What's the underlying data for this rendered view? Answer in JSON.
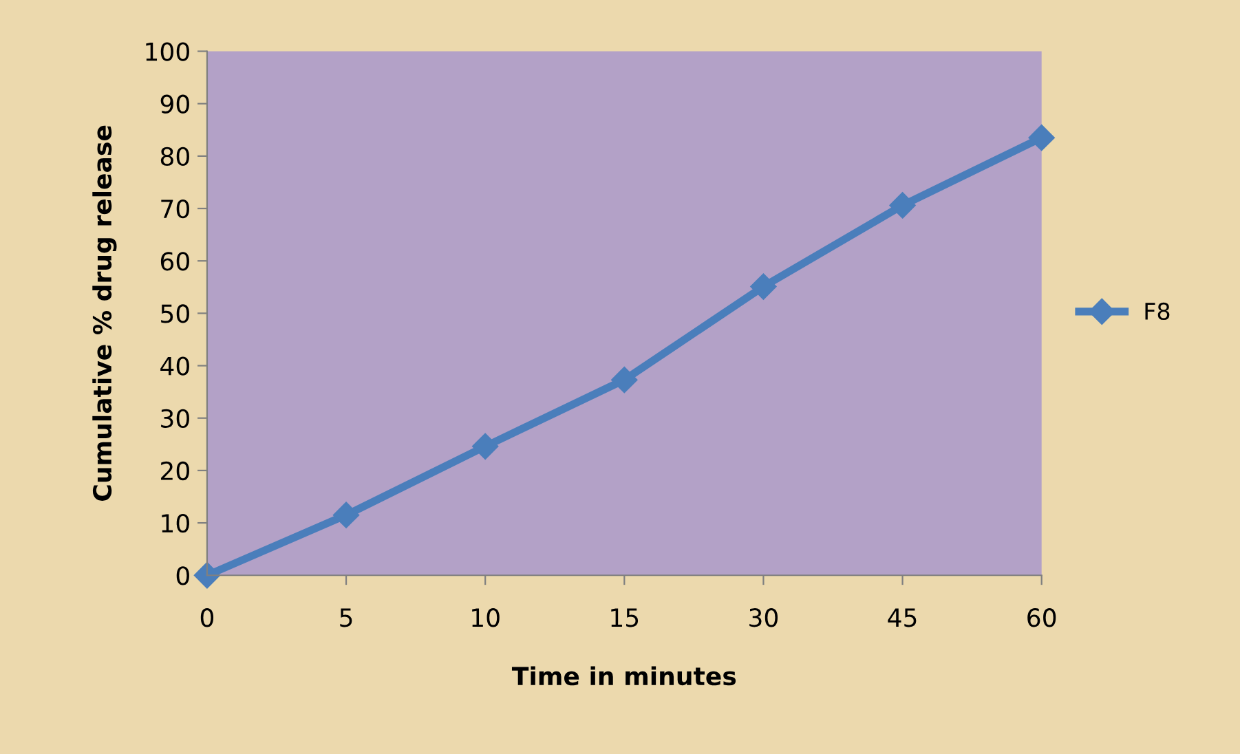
{
  "chart_data": {
    "type": "line",
    "xlabel": "Time in minutes",
    "ylabel": "Cumulative % drug release",
    "categories": [
      "0",
      "5",
      "10",
      "15",
      "30",
      "45",
      "60"
    ],
    "series": [
      {
        "name": "F8",
        "color": "#4a7ebb",
        "values": [
          0,
          11.5,
          24.6,
          37.3,
          55.1,
          70.6,
          83.5
        ]
      }
    ],
    "ylim": [
      0,
      100
    ],
    "yticks": [
      0,
      10,
      20,
      30,
      40,
      50,
      60,
      70,
      80,
      90,
      100
    ],
    "marker": "diamond",
    "line_style": "solid",
    "legend": "right",
    "grid": false
  }
}
